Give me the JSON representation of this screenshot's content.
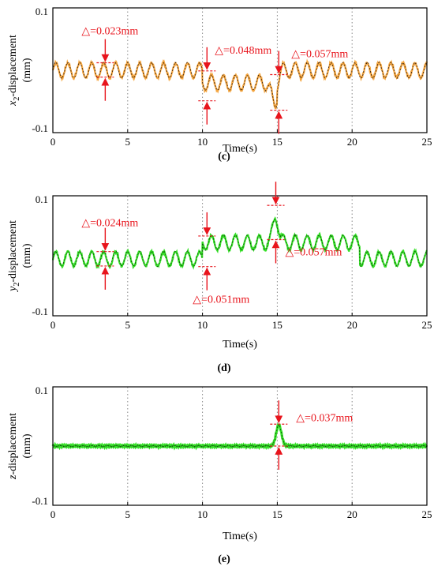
{
  "chart_data": [
    {
      "type": "line",
      "panel_label": "(c)",
      "ylabel_var": "x",
      "ylabel_sub": "2",
      "ylabel_suffix": "-displacement",
      "ylabel_unit": "(mm)",
      "xlabel": "Time(s)",
      "xlim": [
        0,
        25
      ],
      "ylim": [
        -0.1,
        0.1
      ],
      "x_ticks": [
        0,
        5,
        10,
        15,
        20,
        25
      ],
      "y_tick_labels": [
        "0.1",
        "-0.1"
      ],
      "grid": "vertical-dotted",
      "series_colors": [
        "#f4a640",
        "#2a1608"
      ],
      "signal": {
        "baseline_segments": [
          [
            0,
            10,
            0.0
          ],
          [
            10,
            15,
            -0.02
          ],
          [
            15,
            25,
            0.0
          ]
        ],
        "amplitude": 0.012,
        "period_s": 0.8,
        "bumps": [
          [
            14.8,
            0.4,
            -0.035
          ]
        ]
      },
      "annotations": [
        {
          "text": "△=0.023mm",
          "x": 3.5,
          "y_top": 0.012,
          "y_bottom": -0.011
        },
        {
          "text": "△=0.048mm",
          "x": 10.3,
          "y_top": -0.001,
          "y_bottom": -0.049
        },
        {
          "text": "△=0.057mm",
          "x": 15.1,
          "y_top": -0.007,
          "y_bottom": -0.064
        }
      ]
    },
    {
      "type": "line",
      "panel_label": "(d)",
      "ylabel_var": "y",
      "ylabel_sub": "2",
      "ylabel_suffix": "-displacement",
      "ylabel_unit": "(mm)",
      "xlabel": "Time(s)",
      "xlim": [
        0,
        25
      ],
      "ylim": [
        -0.1,
        0.1
      ],
      "x_ticks": [
        0,
        5,
        10,
        15,
        20,
        25
      ],
      "y_tick_labels": [
        "0.1",
        "-0.1"
      ],
      "grid": "vertical-dotted",
      "series_colors": [
        "#34e026",
        "#0d3d0a"
      ],
      "signal": {
        "baseline_segments": [
          [
            0,
            10,
            -0.005
          ],
          [
            10,
            20.5,
            0.022
          ],
          [
            20.5,
            25,
            -0.005
          ]
        ],
        "amplitude": 0.012,
        "period_s": 0.8,
        "bumps": [
          [
            14.9,
            0.35,
            0.045
          ]
        ]
      },
      "annotations": [
        {
          "text": "△=0.024mm",
          "x": 3.5,
          "y_top": 0.007,
          "y_bottom": -0.017
        },
        {
          "text": "△=0.051mm",
          "x": 10.3,
          "y_top": 0.033,
          "y_bottom": -0.018
        },
        {
          "text": "△=0.057mm",
          "x": 14.9,
          "y_top": 0.084,
          "y_bottom": 0.027
        }
      ]
    },
    {
      "type": "line",
      "panel_label": "(e)",
      "ylabel_var": "z",
      "ylabel_sub": "",
      "ylabel_suffix": "-displacement",
      "ylabel_unit": "(mm)",
      "xlabel": "Time(s)",
      "xlim": [
        0,
        25
      ],
      "ylim": [
        -0.1,
        0.1
      ],
      "x_ticks": [
        0,
        5,
        10,
        15,
        20,
        25
      ],
      "y_tick_labels": [
        "0.1",
        "-0.1"
      ],
      "grid": "vertical-dotted",
      "series_colors": [
        "#34e026",
        "#0d3d0a"
      ],
      "signal": {
        "baseline_segments": [
          [
            0,
            25,
            0.0
          ]
        ],
        "amplitude": 0.0015,
        "period_s": 0.12,
        "bumps": [
          [
            15.1,
            0.35,
            0.036
          ]
        ]
      },
      "annotations": [
        {
          "text": "△=0.037mm",
          "x": 15.1,
          "y_top": 0.037,
          "y_bottom": 0.0
        }
      ]
    }
  ]
}
